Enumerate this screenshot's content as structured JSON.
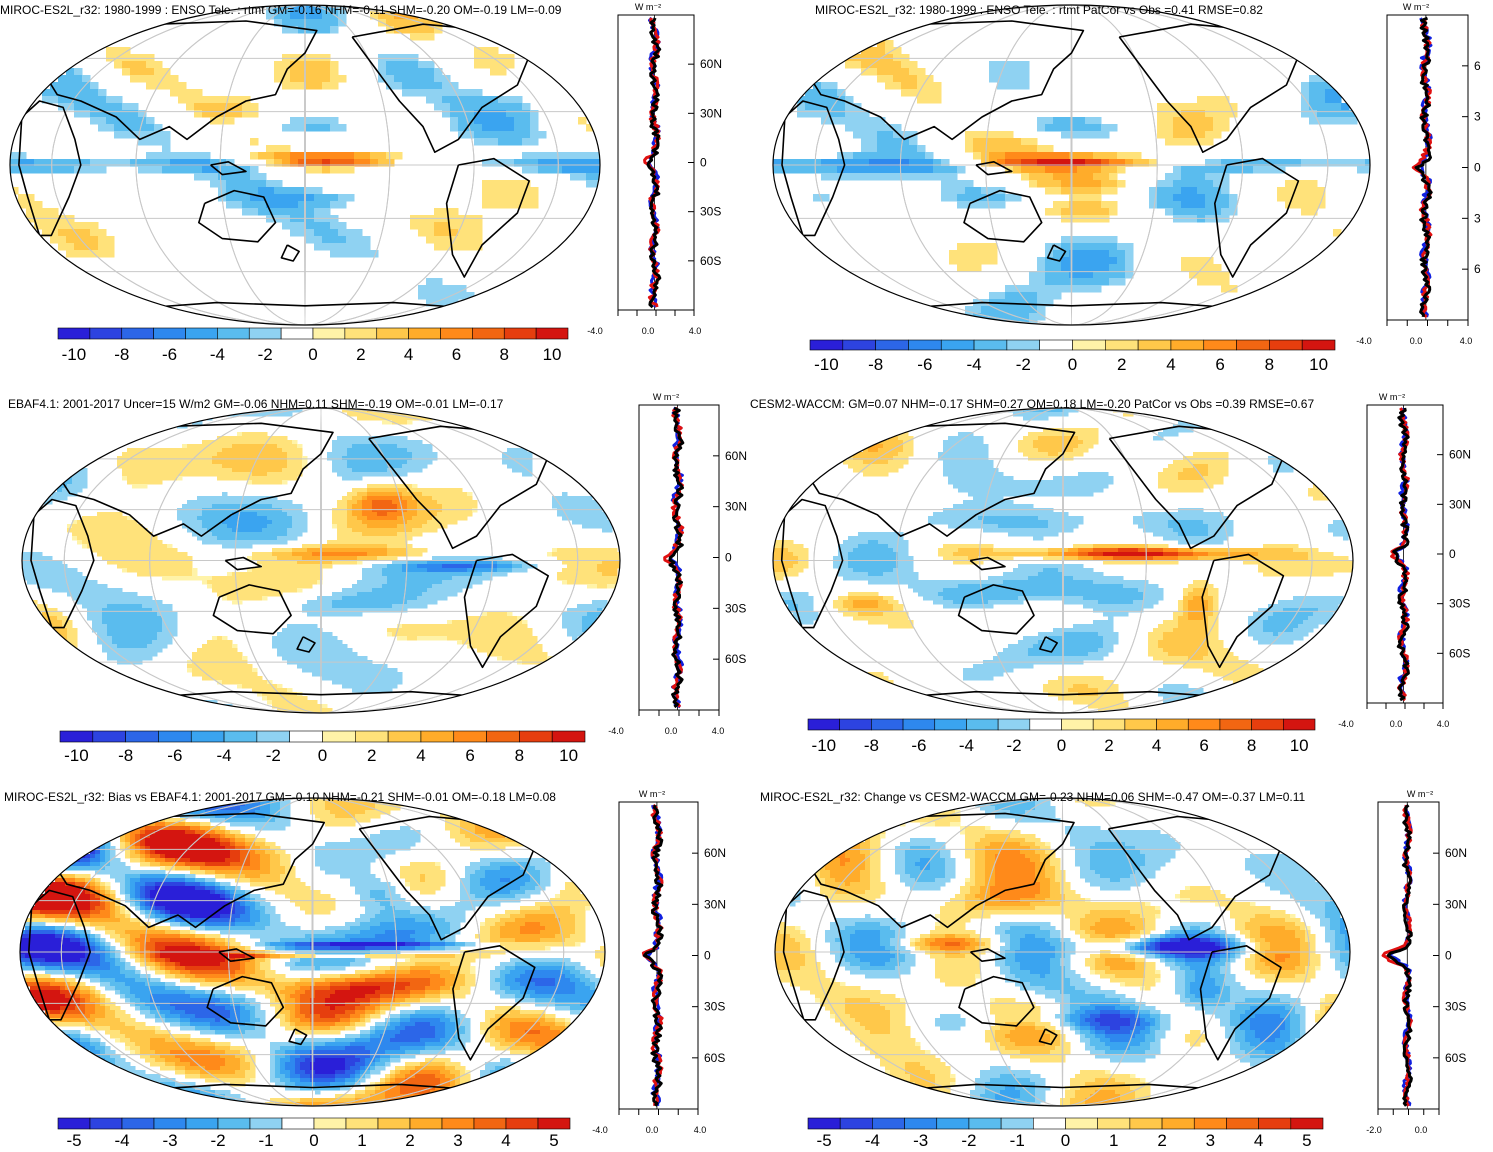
{
  "panels": [
    {
      "title": "MIROC-ES2L_r32: 1980-1999 : ENSO Tele. : rtmt GM=-0.16 NHM=-0.11 SHM=-0.20 OM=-0.19 LM=-0.09",
      "units": "W m⁻²",
      "lat_ticks": [
        "60N",
        "30N",
        "0",
        "30S",
        "60S"
      ],
      "x_ticks": [
        "-4.0",
        "0.0",
        "4.0"
      ],
      "colorbar_ticks": [
        "-10",
        "-8",
        "-6",
        "-4",
        "-2",
        "0",
        "2",
        "4",
        "6",
        "8",
        "10"
      ],
      "colorbar_colors": [
        "#2a1fd8",
        "#2d43e0",
        "#2c66e8",
        "#2e88ee",
        "#3aa4f0",
        "#5abcee",
        "#8fd2f2",
        "#ffffff",
        "#fff3a8",
        "#ffe27a",
        "#ffc84a",
        "#ffac2a",
        "#ff8a1a",
        "#f26612",
        "#e63e0e",
        "#d41510"
      ]
    },
    {
      "title": "MIROC-ES2L_r32: 1980-1999 : ENSO Tele. : rtmt PatCor vs Obs =0.41 RMSE=0.82",
      "units": "W m⁻²",
      "lat_ticks": [
        "6",
        "3",
        "0",
        "3",
        "6"
      ],
      "x_ticks": [
        "-4.0",
        "0.0",
        "4.0"
      ],
      "colorbar_ticks": [
        "-10",
        "-8",
        "-6",
        "-4",
        "-2",
        "0",
        "2",
        "4",
        "6",
        "8",
        "10"
      ],
      "colorbar_colors": [
        "#2a1fd8",
        "#2d43e0",
        "#2c66e8",
        "#2e88ee",
        "#3aa4f0",
        "#5abcee",
        "#8fd2f2",
        "#ffffff",
        "#fff3a8",
        "#ffe27a",
        "#ffc84a",
        "#ffac2a",
        "#ff8a1a",
        "#f26612",
        "#e63e0e",
        "#d41510"
      ]
    },
    {
      "title": "EBAF4.1: 2001-2017 Uncer=15 W/m2 GM=-0.06 NHM=0.11 SHM=-0.19 OM=-0.01 LM=-0.17",
      "units": "W m⁻²",
      "lat_ticks": [
        "60N",
        "30N",
        "0",
        "30S",
        "60S"
      ],
      "x_ticks": [
        "-4.0",
        "0.0",
        "4.0"
      ],
      "colorbar_ticks": [
        "-10",
        "-8",
        "-6",
        "-4",
        "-2",
        "0",
        "2",
        "4",
        "6",
        "8",
        "10"
      ],
      "colorbar_colors": [
        "#2a1fd8",
        "#2d43e0",
        "#2c66e8",
        "#2e88ee",
        "#3aa4f0",
        "#5abcee",
        "#8fd2f2",
        "#ffffff",
        "#fff3a8",
        "#ffe27a",
        "#ffc84a",
        "#ffac2a",
        "#ff8a1a",
        "#f26612",
        "#e63e0e",
        "#d41510"
      ]
    },
    {
      "title": "CESM2-WACCM: GM=0.07 NHM=-0.17 SHM=0.27 OM=0.18 LM=-0.20 PatCor vs Obs =0.39 RMSE=0.67",
      "units": "W m⁻²",
      "lat_ticks": [
        "60N",
        "30N",
        "0",
        "30S",
        "60S"
      ],
      "x_ticks": [
        "-4.0",
        "0.0",
        "4.0"
      ],
      "colorbar_ticks": [
        "-10",
        "-8",
        "-6",
        "-4",
        "-2",
        "0",
        "2",
        "4",
        "6",
        "8",
        "10"
      ],
      "colorbar_colors": [
        "#2a1fd8",
        "#2d43e0",
        "#2c66e8",
        "#2e88ee",
        "#3aa4f0",
        "#5abcee",
        "#8fd2f2",
        "#ffffff",
        "#fff3a8",
        "#ffe27a",
        "#ffc84a",
        "#ffac2a",
        "#ff8a1a",
        "#f26612",
        "#e63e0e",
        "#d41510"
      ]
    },
    {
      "title": "MIROC-ES2L_r32: Bias vs EBAF4.1: 2001-2017 GM=-0.10 NHM=-0.21 SHM=-0.01 OM=-0.18 LM=0.08",
      "units": "W m⁻²",
      "lat_ticks": [
        "60N",
        "30N",
        "0",
        "30S",
        "60S"
      ],
      "x_ticks": [
        "-4.0",
        "0.0",
        "4.0"
      ],
      "colorbar_ticks": [
        "-5",
        "-4",
        "-3",
        "-2",
        "-1",
        "0",
        "1",
        "2",
        "3",
        "4",
        "5"
      ],
      "colorbar_colors": [
        "#2a1fd8",
        "#2d43e0",
        "#2c66e8",
        "#2e88ee",
        "#3aa4f0",
        "#5abcee",
        "#8fd2f2",
        "#ffffff",
        "#fff3a8",
        "#ffe27a",
        "#ffc84a",
        "#ffac2a",
        "#ff8a1a",
        "#f26612",
        "#e63e0e",
        "#d41510"
      ]
    },
    {
      "title": "MIROC-ES2L_r32: Change vs CESM2-WACCM GM=-0.23 NHM=0.06 SHM=-0.47 OM=-0.37 LM=0.11",
      "units": "W m⁻²",
      "lat_ticks": [
        "60N",
        "30N",
        "0",
        "30S",
        "60S"
      ],
      "x_ticks": [
        "-2.0",
        "0.0"
      ],
      "colorbar_ticks": [
        "-5",
        "-4",
        "-3",
        "-2",
        "-1",
        "0",
        "1",
        "2",
        "3",
        "4",
        "5"
      ],
      "colorbar_colors": [
        "#2a1fd8",
        "#2d43e0",
        "#2c66e8",
        "#2e88ee",
        "#3aa4f0",
        "#5abcee",
        "#8fd2f2",
        "#ffffff",
        "#fff3a8",
        "#ffe27a",
        "#ffc84a",
        "#ffac2a",
        "#ff8a1a",
        "#f26612",
        "#e63e0e",
        "#d41510"
      ]
    }
  ],
  "zonal_line_colors": {
    "model": "#e01010",
    "obs": "#1020e0",
    "mean": "#000000"
  }
}
